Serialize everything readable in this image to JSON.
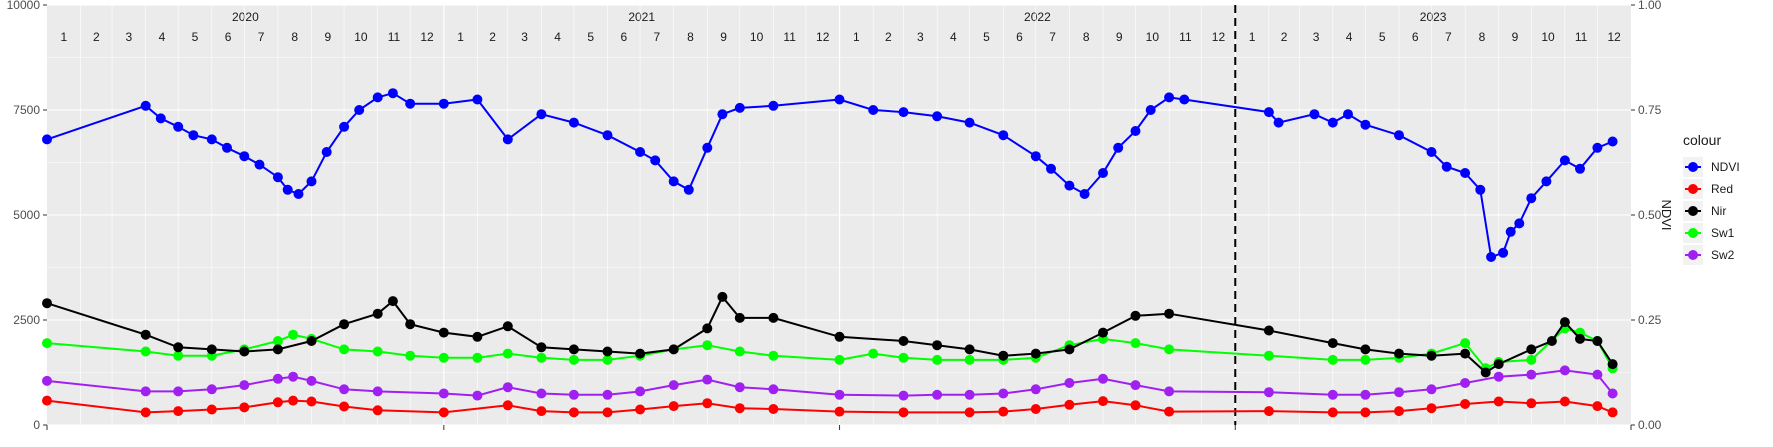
{
  "chart_data": {
    "type": "line",
    "x_axis": {
      "years": [
        "2020",
        "2021",
        "2022",
        "2023"
      ],
      "month_labels": [
        "1",
        "2",
        "3",
        "4",
        "5",
        "6",
        "7",
        "8",
        "9",
        "10",
        "11",
        "12"
      ],
      "xlim": [
        "2020-01-01",
        "2024-01-01"
      ]
    },
    "y_axis_left": {
      "ylim": [
        0,
        10000
      ],
      "ticks": [
        0,
        2500,
        5000,
        7500,
        10000
      ],
      "tick_labels": [
        "0",
        "2500",
        "5000",
        "7500",
        "10000"
      ]
    },
    "y_axis_right": {
      "label": "NDVI",
      "ylim": [
        0,
        1
      ],
      "ticks": [
        0,
        0.25,
        0.5,
        0.75,
        1.0
      ],
      "tick_labels": [
        "0.00",
        "0.25",
        "0.50",
        "0.75",
        "1.00"
      ]
    },
    "reference_line": {
      "x": "2023-01-01",
      "style": "dashed"
    },
    "grid": true,
    "legend": {
      "title": "colour",
      "position": "right",
      "entries": [
        "NDVI",
        "Red",
        "Nir",
        "Sw1",
        "Sw2"
      ]
    },
    "series": [
      {
        "name": "NDVI",
        "axis": "right",
        "color": "#0000ff",
        "points": [
          [
            "2020-01-01",
            0.68
          ],
          [
            "2020-04-01",
            0.76
          ],
          [
            "2020-04-15",
            0.73
          ],
          [
            "2020-05-01",
            0.71
          ],
          [
            "2020-05-15",
            0.69
          ],
          [
            "2020-06-01",
            0.68
          ],
          [
            "2020-06-15",
            0.66
          ],
          [
            "2020-07-01",
            0.64
          ],
          [
            "2020-07-15",
            0.62
          ],
          [
            "2020-08-01",
            0.59
          ],
          [
            "2020-08-10",
            0.56
          ],
          [
            "2020-08-20",
            0.55
          ],
          [
            "2020-09-01",
            0.58
          ],
          [
            "2020-09-15",
            0.65
          ],
          [
            "2020-10-01",
            0.71
          ],
          [
            "2020-10-15",
            0.75
          ],
          [
            "2020-11-01",
            0.78
          ],
          [
            "2020-11-15",
            0.79
          ],
          [
            "2020-12-01",
            0.765
          ],
          [
            "2021-01-01",
            0.765
          ],
          [
            "2021-02-01",
            0.775
          ],
          [
            "2021-03-01",
            0.68
          ],
          [
            "2021-04-01",
            0.74
          ],
          [
            "2021-05-01",
            0.72
          ],
          [
            "2021-06-01",
            0.69
          ],
          [
            "2021-07-01",
            0.65
          ],
          [
            "2021-07-15",
            0.63
          ],
          [
            "2021-08-01",
            0.58
          ],
          [
            "2021-08-15",
            0.56
          ],
          [
            "2021-09-01",
            0.66
          ],
          [
            "2021-09-15",
            0.74
          ],
          [
            "2021-10-01",
            0.755
          ],
          [
            "2021-11-01",
            0.76
          ],
          [
            "2022-01-01",
            0.775
          ],
          [
            "2022-02-01",
            0.75
          ],
          [
            "2022-03-01",
            0.745
          ],
          [
            "2022-04-01",
            0.735
          ],
          [
            "2022-05-01",
            0.72
          ],
          [
            "2022-06-01",
            0.69
          ],
          [
            "2022-07-01",
            0.64
          ],
          [
            "2022-07-15",
            0.61
          ],
          [
            "2022-08-01",
            0.57
          ],
          [
            "2022-08-15",
            0.55
          ],
          [
            "2022-09-01",
            0.6
          ],
          [
            "2022-09-15",
            0.66
          ],
          [
            "2022-10-01",
            0.7
          ],
          [
            "2022-10-15",
            0.75
          ],
          [
            "2022-11-01",
            0.78
          ],
          [
            "2022-11-15",
            0.775
          ],
          [
            "2023-02-01",
            0.745
          ],
          [
            "2023-02-10",
            0.72
          ],
          [
            "2023-03-15",
            0.74
          ],
          [
            "2023-04-01",
            0.72
          ],
          [
            "2023-04-15",
            0.74
          ],
          [
            "2023-05-01",
            0.715
          ],
          [
            "2023-06-01",
            0.69
          ],
          [
            "2023-07-01",
            0.65
          ],
          [
            "2023-07-15",
            0.615
          ],
          [
            "2023-08-01",
            0.6
          ],
          [
            "2023-08-15",
            0.56
          ],
          [
            "2023-08-25",
            0.4
          ],
          [
            "2023-09-05",
            0.41
          ],
          [
            "2023-09-12",
            0.46
          ],
          [
            "2023-09-20",
            0.48
          ],
          [
            "2023-10-01",
            0.54
          ],
          [
            "2023-10-15",
            0.58
          ],
          [
            "2023-11-01",
            0.63
          ],
          [
            "2023-11-15",
            0.61
          ],
          [
            "2023-12-01",
            0.66
          ],
          [
            "2023-12-15",
            0.675
          ]
        ]
      },
      {
        "name": "Red",
        "axis": "left",
        "color": "#ff0000",
        "points": [
          [
            "2020-01-01",
            580
          ],
          [
            "2020-04-01",
            300
          ],
          [
            "2020-05-01",
            330
          ],
          [
            "2020-06-01",
            370
          ],
          [
            "2020-07-01",
            420
          ],
          [
            "2020-08-01",
            540
          ],
          [
            "2020-08-15",
            580
          ],
          [
            "2020-09-01",
            560
          ],
          [
            "2020-10-01",
            440
          ],
          [
            "2020-11-01",
            350
          ],
          [
            "2021-01-01",
            300
          ],
          [
            "2021-03-01",
            470
          ],
          [
            "2021-04-01",
            330
          ],
          [
            "2021-05-01",
            300
          ],
          [
            "2021-06-01",
            300
          ],
          [
            "2021-07-01",
            370
          ],
          [
            "2021-08-01",
            450
          ],
          [
            "2021-09-01",
            520
          ],
          [
            "2021-10-01",
            400
          ],
          [
            "2021-11-01",
            380
          ],
          [
            "2022-01-01",
            320
          ],
          [
            "2022-03-01",
            300
          ],
          [
            "2022-05-01",
            300
          ],
          [
            "2022-06-01",
            320
          ],
          [
            "2022-07-01",
            380
          ],
          [
            "2022-08-01",
            480
          ],
          [
            "2022-09-01",
            570
          ],
          [
            "2022-10-01",
            470
          ],
          [
            "2022-11-01",
            320
          ],
          [
            "2023-02-01",
            330
          ],
          [
            "2023-04-01",
            300
          ],
          [
            "2023-05-01",
            300
          ],
          [
            "2023-06-01",
            330
          ],
          [
            "2023-07-01",
            400
          ],
          [
            "2023-08-01",
            500
          ],
          [
            "2023-09-01",
            560
          ],
          [
            "2023-10-01",
            520
          ],
          [
            "2023-11-01",
            560
          ],
          [
            "2023-12-01",
            450
          ],
          [
            "2023-12-15",
            300
          ]
        ]
      },
      {
        "name": "Nir",
        "axis": "left",
        "color": "#000000",
        "points": [
          [
            "2020-01-01",
            2900
          ],
          [
            "2020-04-01",
            2150
          ],
          [
            "2020-05-01",
            1850
          ],
          [
            "2020-06-01",
            1800
          ],
          [
            "2020-07-01",
            1750
          ],
          [
            "2020-08-01",
            1800
          ],
          [
            "2020-09-01",
            2000
          ],
          [
            "2020-10-01",
            2400
          ],
          [
            "2020-11-01",
            2650
          ],
          [
            "2020-11-15",
            2950
          ],
          [
            "2020-12-01",
            2400
          ],
          [
            "2021-01-01",
            2200
          ],
          [
            "2021-02-01",
            2100
          ],
          [
            "2021-03-01",
            2350
          ],
          [
            "2021-04-01",
            1850
          ],
          [
            "2021-05-01",
            1800
          ],
          [
            "2021-06-01",
            1750
          ],
          [
            "2021-07-01",
            1700
          ],
          [
            "2021-08-01",
            1800
          ],
          [
            "2021-09-01",
            2300
          ],
          [
            "2021-09-15",
            3050
          ],
          [
            "2021-10-01",
            2550
          ],
          [
            "2021-11-01",
            2550
          ],
          [
            "2022-01-01",
            2100
          ],
          [
            "2022-03-01",
            2000
          ],
          [
            "2022-04-01",
            1900
          ],
          [
            "2022-05-01",
            1800
          ],
          [
            "2022-06-01",
            1650
          ],
          [
            "2022-07-01",
            1700
          ],
          [
            "2022-08-01",
            1800
          ],
          [
            "2022-09-01",
            2200
          ],
          [
            "2022-10-01",
            2600
          ],
          [
            "2022-11-01",
            2650
          ],
          [
            "2023-02-01",
            2250
          ],
          [
            "2023-04-01",
            1950
          ],
          [
            "2023-05-01",
            1800
          ],
          [
            "2023-06-01",
            1700
          ],
          [
            "2023-07-01",
            1650
          ],
          [
            "2023-08-01",
            1700
          ],
          [
            "2023-08-20",
            1250
          ],
          [
            "2023-09-01",
            1450
          ],
          [
            "2023-10-01",
            1800
          ],
          [
            "2023-10-20",
            2000
          ],
          [
            "2023-11-01",
            2450
          ],
          [
            "2023-11-15",
            2050
          ],
          [
            "2023-12-01",
            2000
          ],
          [
            "2023-12-15",
            1450
          ]
        ]
      },
      {
        "name": "Sw1",
        "axis": "left",
        "color": "#00ff00",
        "points": [
          [
            "2020-01-01",
            1950
          ],
          [
            "2020-04-01",
            1750
          ],
          [
            "2020-05-01",
            1650
          ],
          [
            "2020-06-01",
            1650
          ],
          [
            "2020-07-01",
            1800
          ],
          [
            "2020-08-01",
            2000
          ],
          [
            "2020-08-15",
            2150
          ],
          [
            "2020-09-01",
            2050
          ],
          [
            "2020-10-01",
            1800
          ],
          [
            "2020-11-01",
            1750
          ],
          [
            "2020-12-01",
            1650
          ],
          [
            "2021-01-01",
            1600
          ],
          [
            "2021-02-01",
            1600
          ],
          [
            "2021-03-01",
            1700
          ],
          [
            "2021-04-01",
            1600
          ],
          [
            "2021-05-01",
            1550
          ],
          [
            "2021-06-01",
            1550
          ],
          [
            "2021-07-01",
            1650
          ],
          [
            "2021-08-01",
            1800
          ],
          [
            "2021-09-01",
            1900
          ],
          [
            "2021-10-01",
            1750
          ],
          [
            "2021-11-01",
            1650
          ],
          [
            "2022-01-01",
            1550
          ],
          [
            "2022-02-01",
            1700
          ],
          [
            "2022-03-01",
            1600
          ],
          [
            "2022-04-01",
            1550
          ],
          [
            "2022-05-01",
            1550
          ],
          [
            "2022-06-01",
            1550
          ],
          [
            "2022-07-01",
            1600
          ],
          [
            "2022-08-01",
            1900
          ],
          [
            "2022-09-01",
            2050
          ],
          [
            "2022-10-01",
            1950
          ],
          [
            "2022-11-01",
            1800
          ],
          [
            "2023-02-01",
            1650
          ],
          [
            "2023-04-01",
            1550
          ],
          [
            "2023-05-01",
            1550
          ],
          [
            "2023-06-01",
            1600
          ],
          [
            "2023-07-01",
            1700
          ],
          [
            "2023-08-01",
            1950
          ],
          [
            "2023-08-20",
            1350
          ],
          [
            "2023-09-01",
            1500
          ],
          [
            "2023-10-01",
            1550
          ],
          [
            "2023-11-01",
            2300
          ],
          [
            "2023-11-15",
            2200
          ],
          [
            "2023-12-01",
            2000
          ],
          [
            "2023-12-15",
            1350
          ]
        ]
      },
      {
        "name": "Sw2",
        "axis": "left",
        "color": "#a020f0",
        "points": [
          [
            "2020-01-01",
            1050
          ],
          [
            "2020-04-01",
            800
          ],
          [
            "2020-05-01",
            800
          ],
          [
            "2020-06-01",
            850
          ],
          [
            "2020-07-01",
            950
          ],
          [
            "2020-08-01",
            1100
          ],
          [
            "2020-08-15",
            1150
          ],
          [
            "2020-09-01",
            1050
          ],
          [
            "2020-10-01",
            850
          ],
          [
            "2020-11-01",
            800
          ],
          [
            "2021-01-01",
            750
          ],
          [
            "2021-02-01",
            700
          ],
          [
            "2021-03-01",
            900
          ],
          [
            "2021-04-01",
            750
          ],
          [
            "2021-05-01",
            720
          ],
          [
            "2021-06-01",
            720
          ],
          [
            "2021-07-01",
            800
          ],
          [
            "2021-08-01",
            950
          ],
          [
            "2021-09-01",
            1080
          ],
          [
            "2021-10-01",
            900
          ],
          [
            "2021-11-01",
            850
          ],
          [
            "2022-01-01",
            720
          ],
          [
            "2022-03-01",
            700
          ],
          [
            "2022-04-01",
            720
          ],
          [
            "2022-05-01",
            720
          ],
          [
            "2022-06-01",
            750
          ],
          [
            "2022-07-01",
            850
          ],
          [
            "2022-08-01",
            1000
          ],
          [
            "2022-09-01",
            1100
          ],
          [
            "2022-10-01",
            950
          ],
          [
            "2022-11-01",
            800
          ],
          [
            "2023-02-01",
            780
          ],
          [
            "2023-04-01",
            720
          ],
          [
            "2023-05-01",
            720
          ],
          [
            "2023-06-01",
            780
          ],
          [
            "2023-07-01",
            850
          ],
          [
            "2023-08-01",
            1000
          ],
          [
            "2023-09-01",
            1150
          ],
          [
            "2023-10-01",
            1200
          ],
          [
            "2023-11-01",
            1300
          ],
          [
            "2023-12-01",
            1200
          ],
          [
            "2023-12-15",
            750
          ]
        ]
      }
    ]
  }
}
